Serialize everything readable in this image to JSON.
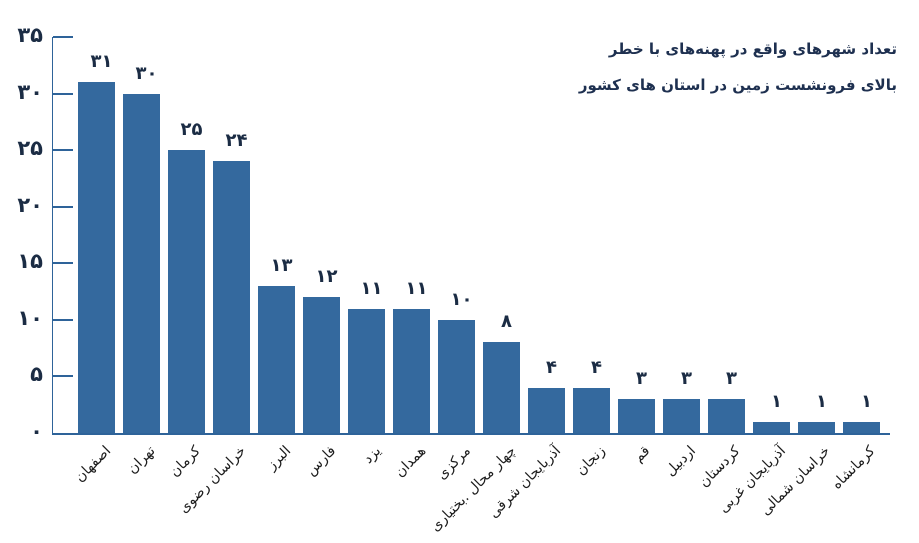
{
  "chart_data": {
    "type": "bar",
    "title_lines": [
      "تعداد شهرهای واقع در پهنه‌های با خطر",
      "بالای فرونشست زمین در استان های کشور"
    ],
    "categories": [
      "اصفهان",
      "تهران",
      "کرمان",
      "خراسان رضوی",
      "البرز",
      "فارس",
      "یزد",
      "همدان",
      "مرکزی",
      "چهار محال .بختیاری",
      "آذربایجان شرقی",
      "زنجان",
      "قم",
      "اردبیل",
      "کردستان",
      "آذربایجان غربی",
      "خراسان شمالی",
      "کرمانشاه"
    ],
    "values": [
      31,
      30,
      25,
      24,
      13,
      12,
      11,
      11,
      10,
      8,
      4,
      4,
      3,
      3,
      3,
      1,
      1,
      1
    ],
    "value_labels": [
      "۳۱",
      "۳۰",
      "۲۵",
      "۲۴",
      "۱۳",
      "۱۲",
      "۱۱",
      "۱۱",
      "۱۰",
      "۸",
      "۴",
      "۴",
      "۳",
      "۳",
      "۳",
      "۱",
      "۱",
      "۱"
    ],
    "y_ticks": [
      {
        "value": 0,
        "label": "۰"
      },
      {
        "value": 5,
        "label": "۵"
      },
      {
        "value": 10,
        "label": "۱۰"
      },
      {
        "value": 15,
        "label": "۱۵"
      },
      {
        "value": 20,
        "label": "۲۰"
      },
      {
        "value": 25,
        "label": "۲۵"
      },
      {
        "value": 30,
        "label": "۳۰"
      },
      {
        "value": 35,
        "label": "۳۵"
      }
    ],
    "ylim": [
      0,
      35
    ],
    "xlabel": "",
    "ylabel": "",
    "grid": false,
    "legend_position": "none",
    "colors": {
      "bar": "#34699e",
      "axis": "#2e6399",
      "number": "#1b2c44",
      "title": "#1e3050",
      "category": "#1c1c1c"
    }
  }
}
